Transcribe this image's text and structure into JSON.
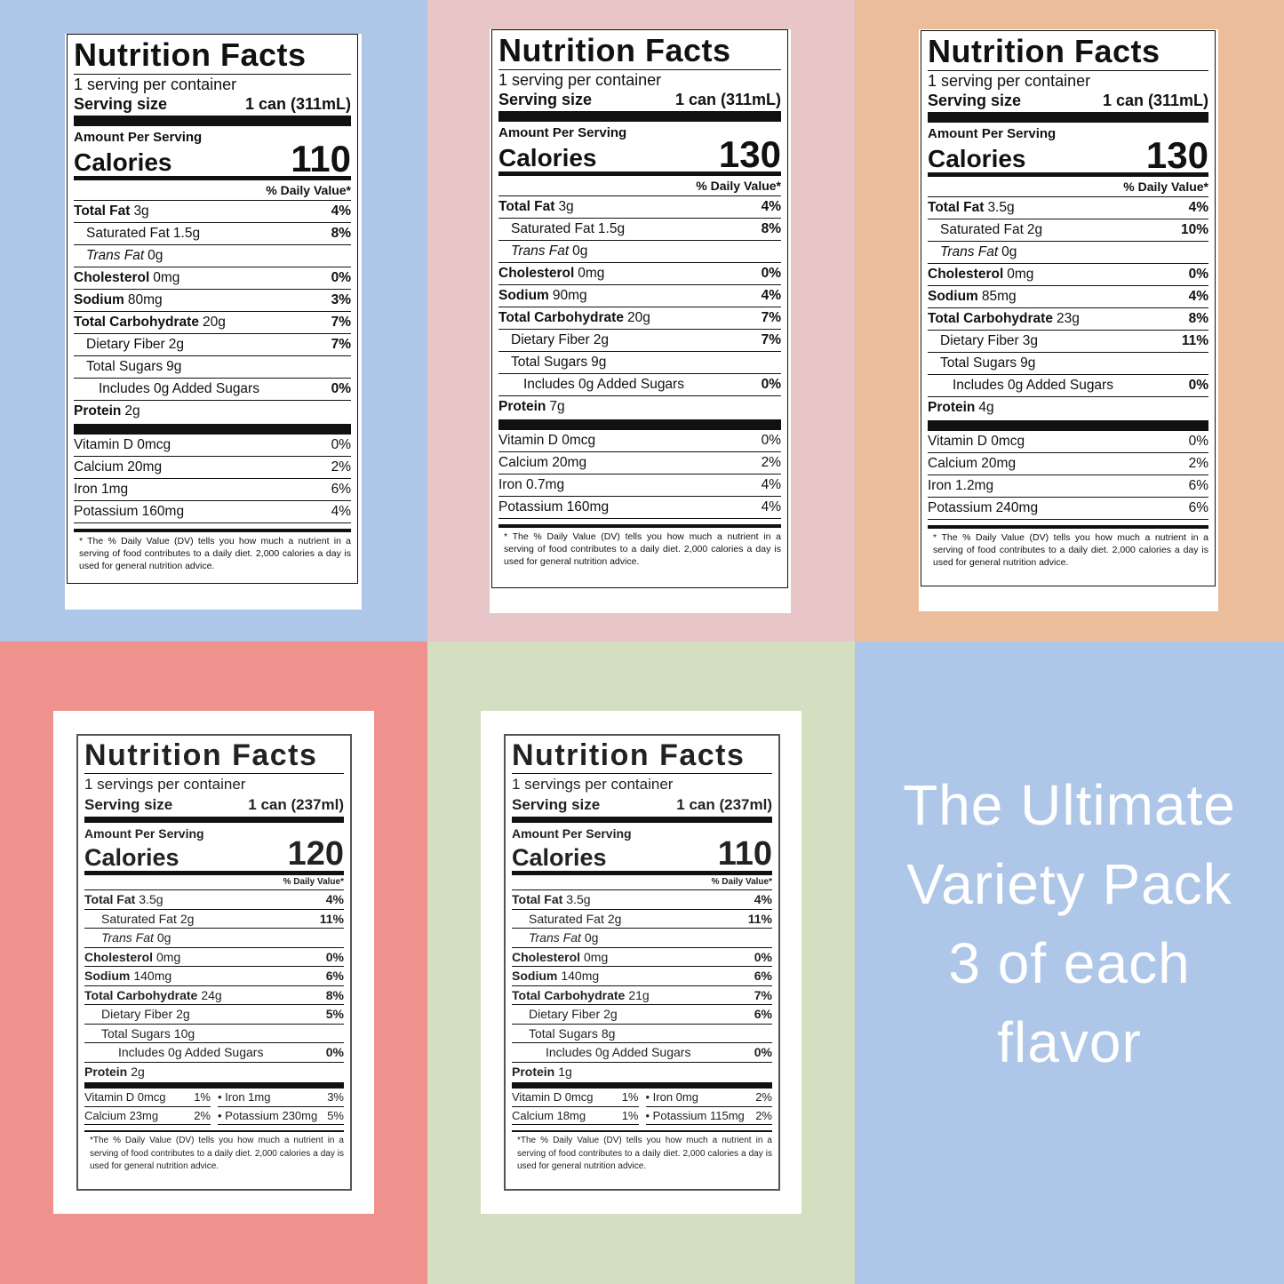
{
  "labels": [
    {
      "title": "Nutrition Facts",
      "servings": "1 serving per container",
      "serving_size_label": "Serving size",
      "serving_size": "1 can (311mL)",
      "amount_per_serving": "Amount Per Serving",
      "calories_label": "Calories",
      "calories": 110,
      "dv_header": "% Daily Value*",
      "nutrients": [
        {
          "name": "Total Fat",
          "amount": "3g",
          "dv": "4%"
        },
        {
          "name": "Saturated Fat",
          "amount": "1.5g",
          "dv": "8%"
        },
        {
          "name": "Trans Fat",
          "amount": "0g"
        },
        {
          "name": "Cholesterol",
          "amount": "0mg",
          "dv": "0%"
        },
        {
          "name": "Sodium",
          "amount": "80mg",
          "dv": "3%"
        },
        {
          "name": "Total Carbohydrate",
          "amount": "20g",
          "dv": "7%"
        },
        {
          "name": "Dietary Fiber",
          "amount": "2g",
          "dv": "7%"
        },
        {
          "name": "Total Sugars",
          "amount": "9g"
        },
        {
          "name": "Includes 0g Added Sugars",
          "dv": "0%"
        },
        {
          "name": "Protein",
          "amount": "2g"
        }
      ],
      "vitamins": [
        {
          "name": "Vitamin D 0mcg",
          "dv": "0%"
        },
        {
          "name": "Calcium 20mg",
          "dv": "2%"
        },
        {
          "name": "Iron 1mg",
          "dv": "6%"
        },
        {
          "name": "Potassium 160mg",
          "dv": "4%"
        }
      ],
      "footnote": "* The % Daily Value (DV) tells you how much a nutrient in a serving of food contributes to a daily diet. 2,000 calories a day is used for general nutrition advice."
    },
    {
      "title": "Nutrition Facts",
      "servings": "1 serving per container",
      "serving_size_label": "Serving size",
      "serving_size": "1 can (311mL)",
      "amount_per_serving": "Amount Per Serving",
      "calories_label": "Calories",
      "calories": 130,
      "dv_header": "% Daily Value*",
      "nutrients": [
        {
          "name": "Total Fat",
          "amount": "3g",
          "dv": "4%"
        },
        {
          "name": "Saturated Fat",
          "amount": "1.5g",
          "dv": "8%"
        },
        {
          "name": "Trans Fat",
          "amount": "0g"
        },
        {
          "name": "Cholesterol",
          "amount": "0mg",
          "dv": "0%"
        },
        {
          "name": "Sodium",
          "amount": "90mg",
          "dv": "4%"
        },
        {
          "name": "Total Carbohydrate",
          "amount": "20g",
          "dv": "7%"
        },
        {
          "name": "Dietary Fiber",
          "amount": "2g",
          "dv": "7%"
        },
        {
          "name": "Total Sugars",
          "amount": "9g"
        },
        {
          "name": "Includes 0g Added Sugars",
          "dv": "0%"
        },
        {
          "name": "Protein",
          "amount": "7g"
        }
      ],
      "vitamins": [
        {
          "name": "Vitamin D 0mcg",
          "dv": "0%"
        },
        {
          "name": "Calcium 20mg",
          "dv": "2%"
        },
        {
          "name": "Iron 0.7mg",
          "dv": "4%"
        },
        {
          "name": "Potassium 160mg",
          "dv": "4%"
        }
      ],
      "footnote": "* The % Daily Value (DV) tells you how much a nutrient in a serving of food contributes to a daily diet. 2,000 calories a day is used for general nutrition advice."
    },
    {
      "title": "Nutrition Facts",
      "servings": "1 serving per container",
      "serving_size_label": "Serving size",
      "serving_size": "1 can (311mL)",
      "amount_per_serving": "Amount Per Serving",
      "calories_label": "Calories",
      "calories": 130,
      "dv_header": "% Daily Value*",
      "nutrients": [
        {
          "name": "Total Fat",
          "amount": "3.5g",
          "dv": "4%"
        },
        {
          "name": "Saturated Fat",
          "amount": "2g",
          "dv": "10%"
        },
        {
          "name": "Trans Fat",
          "amount": "0g"
        },
        {
          "name": "Cholesterol",
          "amount": "0mg",
          "dv": "0%"
        },
        {
          "name": "Sodium",
          "amount": "85mg",
          "dv": "4%"
        },
        {
          "name": "Total Carbohydrate",
          "amount": "23g",
          "dv": "8%"
        },
        {
          "name": "Dietary Fiber",
          "amount": "3g",
          "dv": "11%"
        },
        {
          "name": "Total Sugars",
          "amount": "9g"
        },
        {
          "name": "Includes 0g Added Sugars",
          "dv": "0%"
        },
        {
          "name": "Protein",
          "amount": "4g"
        }
      ],
      "vitamins": [
        {
          "name": "Vitamin D 0mcg",
          "dv": "0%"
        },
        {
          "name": "Calcium 20mg",
          "dv": "2%"
        },
        {
          "name": "Iron 1.2mg",
          "dv": "6%"
        },
        {
          "name": "Potassium 240mg",
          "dv": "6%"
        }
      ],
      "footnote": "* The % Daily Value (DV) tells you how much a nutrient in a serving of food contributes to a daily diet. 2,000 calories a day is used for general nutrition advice."
    },
    {
      "title": "Nutrition Facts",
      "servings": "1 servings per container",
      "serving_size_label": "Serving size",
      "serving_size": "1 can (237ml)",
      "amount_per_serving": "Amount Per Serving",
      "calories_label": "Calories",
      "calories": 120,
      "dv_header": "% Daily Value*",
      "nutrients": [
        {
          "name": "Total Fat",
          "amount": "3.5g",
          "dv": "4%"
        },
        {
          "name": "Saturated Fat",
          "amount": "2g",
          "dv": "11%"
        },
        {
          "name": "Trans Fat",
          "amount": "0g"
        },
        {
          "name": "Cholesterol",
          "amount": "0mg",
          "dv": "0%"
        },
        {
          "name": "Sodium",
          "amount": "140mg",
          "dv": "6%"
        },
        {
          "name": "Total Carbohydrate",
          "amount": "24g",
          "dv": "8%"
        },
        {
          "name": "Dietary Fiber",
          "amount": "2g",
          "dv": "5%"
        },
        {
          "name": "Total Sugars",
          "amount": "10g"
        },
        {
          "name": "Includes 0g Added Sugars",
          "dv": "0%"
        },
        {
          "name": "Protein",
          "amount": "2g"
        }
      ],
      "vitamins": [
        {
          "name": "Vitamin D 0mcg",
          "dv": "1%"
        },
        {
          "name": "• Iron 1mg",
          "dv": "3%"
        },
        {
          "name": "Calcium 23mg",
          "dv": "2%"
        },
        {
          "name": "• Potassium 230mg",
          "dv": "5%"
        }
      ],
      "footnote": "*The % Daily Value (DV) tells you how much a nutrient in a serving of food contributes to a daily diet. 2,000 calories a day is used for general nutrition advice."
    },
    {
      "title": "Nutrition Facts",
      "servings": "1 servings per container",
      "serving_size_label": "Serving size",
      "serving_size": "1 can (237ml)",
      "amount_per_serving": "Amount Per Serving",
      "calories_label": "Calories",
      "calories": 110,
      "dv_header": "% Daily Value*",
      "nutrients": [
        {
          "name": "Total Fat",
          "amount": "3.5g",
          "dv": "4%"
        },
        {
          "name": "Saturated Fat",
          "amount": "2g",
          "dv": "11%"
        },
        {
          "name": "Trans Fat",
          "amount": "0g"
        },
        {
          "name": "Cholesterol",
          "amount": "0mg",
          "dv": "0%"
        },
        {
          "name": "Sodium",
          "amount": "140mg",
          "dv": "6%"
        },
        {
          "name": "Total Carbohydrate",
          "amount": "21g",
          "dv": "7%"
        },
        {
          "name": "Dietary Fiber",
          "amount": "2g",
          "dv": "6%"
        },
        {
          "name": "Total Sugars",
          "amount": "8g"
        },
        {
          "name": "Includes 0g Added Sugars",
          "dv": "0%"
        },
        {
          "name": "Protein",
          "amount": "1g"
        }
      ],
      "vitamins": [
        {
          "name": "Vitamin D 0mcg",
          "dv": "1%"
        },
        {
          "name": "• Iron 0mg",
          "dv": "2%"
        },
        {
          "name": "Calcium 18mg",
          "dv": "1%"
        },
        {
          "name": "• Potassium 115mg",
          "dv": "2%"
        }
      ],
      "footnote": "*The % Daily Value (DV) tells you how much a nutrient in a serving of food contributes to a daily diet. 2,000 calories a day is used for general nutrition advice."
    }
  ],
  "tagline": {
    "lines": [
      "The Ultimate",
      "Variety Pack",
      "3 of each",
      "flavor"
    ]
  }
}
